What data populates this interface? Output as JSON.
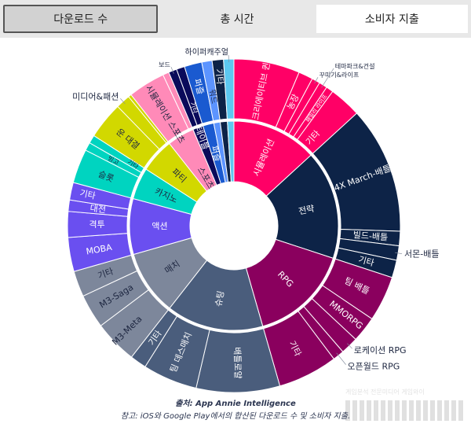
{
  "tabs": [
    {
      "label": "다운로드 수"
    },
    {
      "label": "총 시간"
    },
    {
      "label": "소비자 지출",
      "active": true
    }
  ],
  "footer": {
    "source": "출처: App Annie Intelligence",
    "note": "참고: iOS와 Google Play에서의 합산된 다운로드 수 및 소비자 지출."
  },
  "watermark": {
    "text": "게임분석 전문미디어 게임와이"
  },
  "chart_data": {
    "type": "sunburst",
    "unit": "share of consumer spend (%, estimated)",
    "categories": [
      {
        "name": "시뮬레이션",
        "color": "#ff0066",
        "children": [
          [
            "크리에이티브 퀸",
            6.4
          ],
          [
            "농장",
            1.4
          ],
          [
            "꾸미기&라이프",
            0.8
          ],
          [
            "테마파크&건설",
            0.8
          ],
          [
            "패밀리 라이프",
            0.7
          ],
          [
            "기타",
            3.1
          ]
        ]
      },
      {
        "name": "전략",
        "color": "#0d2347",
        "children": [
          [
            "4X March-배틀",
            12.3
          ],
          [
            "빌드-배틀",
            1.4
          ],
          [
            "서몬-배틀",
            1.4
          ],
          [
            "기타",
            1.7
          ]
        ]
      },
      {
        "name": "RPG",
        "color": "#8a005e",
        "children": [
          [
            "팀 배틀",
            4.4
          ],
          [
            "MMORPG",
            2.5
          ],
          [
            "로케이션 RPG",
            1.7
          ],
          [
            "오픈월드 RPG",
            1.1
          ],
          [
            "기타",
            5.8
          ]
        ]
      },
      {
        "name": "슈팅",
        "color": "#4a5d7c",
        "children": [
          [
            "배틀로얄",
            8.1
          ],
          [
            "팀 데스매치",
            5.3
          ],
          [
            "기타",
            1.6
          ]
        ]
      },
      {
        "name": "매치",
        "color": "#7d879b",
        "children": [
          [
            "M3-Meta",
            4.2
          ],
          [
            "M3-Saga",
            3.3
          ],
          [
            "기타",
            2.5
          ]
        ]
      },
      {
        "name": "액션",
        "color": "#6a4ff0",
        "children": [
          [
            "MOBA",
            3.3
          ],
          [
            "격투",
            2.5
          ],
          [
            "대전",
            1.1
          ],
          [
            "기타",
            1.7
          ]
        ]
      },
      {
        "name": "카지노",
        "color": "#00d4c0",
        "children": [
          [
            "슬롯",
            3.3
          ],
          [
            "빙고",
            0.8
          ],
          [
            "기타",
            0.8
          ]
        ]
      },
      {
        "name": "파티",
        "color": "#d2d800",
        "children": [
          [
            "운 대결",
            3.6
          ],
          [
            "미디어&패션",
            1.4
          ],
          [
            "기타",
            0.3
          ]
        ]
      },
      {
        "name": "스포츠",
        "color": "#ff8ab8",
        "children": [
          [
            "시뮬레이션 스포츠",
            3.6
          ],
          [
            "기타",
            0.6
          ]
        ]
      },
      {
        "name": "테이블",
        "color": "#0a0a5a",
        "children": [
          [
            "보드",
            0.8
          ],
          [
            "기타",
            0.8
          ]
        ]
      },
      {
        "name": "퍼즐",
        "color": "#1a5ad0",
        "children": [
          [
            "퍼즐",
            1.7
          ]
        ]
      },
      {
        "name": "워드",
        "color": "#5c94ff",
        "children": [
          [
            "워드",
            1.0
          ]
        ]
      },
      {
        "name": "기타",
        "color": "#0d2347",
        "children": [
          [
            "기타",
            1.1
          ]
        ]
      },
      {
        "name": "하이퍼캐주얼",
        "color": "#5cc8f0",
        "children": [
          [
            "하이퍼캐주얼",
            1.0
          ]
        ]
      }
    ]
  }
}
